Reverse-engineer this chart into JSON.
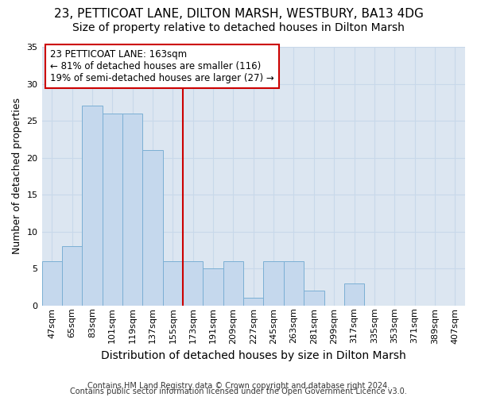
{
  "title1": "23, PETTICOAT LANE, DILTON MARSH, WESTBURY, BA13 4DG",
  "title2": "Size of property relative to detached houses in Dilton Marsh",
  "xlabel": "Distribution of detached houses by size in Dilton Marsh",
  "ylabel": "Number of detached properties",
  "footer1": "Contains HM Land Registry data © Crown copyright and database right 2024.",
  "footer2": "Contains public sector information licensed under the Open Government Licence v3.0.",
  "categories": [
    "47sqm",
    "65sqm",
    "83sqm",
    "101sqm",
    "119sqm",
    "137sqm",
    "155sqm",
    "173sqm",
    "191sqm",
    "209sqm",
    "227sqm",
    "245sqm",
    "263sqm",
    "281sqm",
    "299sqm",
    "317sqm",
    "335sqm",
    "353sqm",
    "371sqm",
    "389sqm",
    "407sqm"
  ],
  "values": [
    6,
    8,
    27,
    26,
    26,
    21,
    6,
    6,
    5,
    6,
    1,
    6,
    6,
    2,
    0,
    3,
    0,
    0,
    0,
    0,
    0
  ],
  "bar_color": "#c5d8ed",
  "bar_edge_color": "#7bafd4",
  "vline_label": "23 PETTICOAT LANE: 163sqm",
  "annotation_line1": "← 81% of detached houses are smaller (116)",
  "annotation_line2": "19% of semi-detached houses are larger (27) →",
  "annotation_box_facecolor": "#ffffff",
  "annotation_box_edgecolor": "#cc0000",
  "vline_color": "#cc0000",
  "vline_position": 7,
  "ylim": [
    0,
    35
  ],
  "yticks": [
    0,
    5,
    10,
    15,
    20,
    25,
    30,
    35
  ],
  "grid_color": "#c8d8ea",
  "background_color": "#dce6f1",
  "title_fontsize": 11,
  "subtitle_fontsize": 10,
  "ylabel_fontsize": 9,
  "xlabel_fontsize": 10,
  "tick_fontsize": 8,
  "footer_fontsize": 7,
  "ann_fontsize": 8.5
}
